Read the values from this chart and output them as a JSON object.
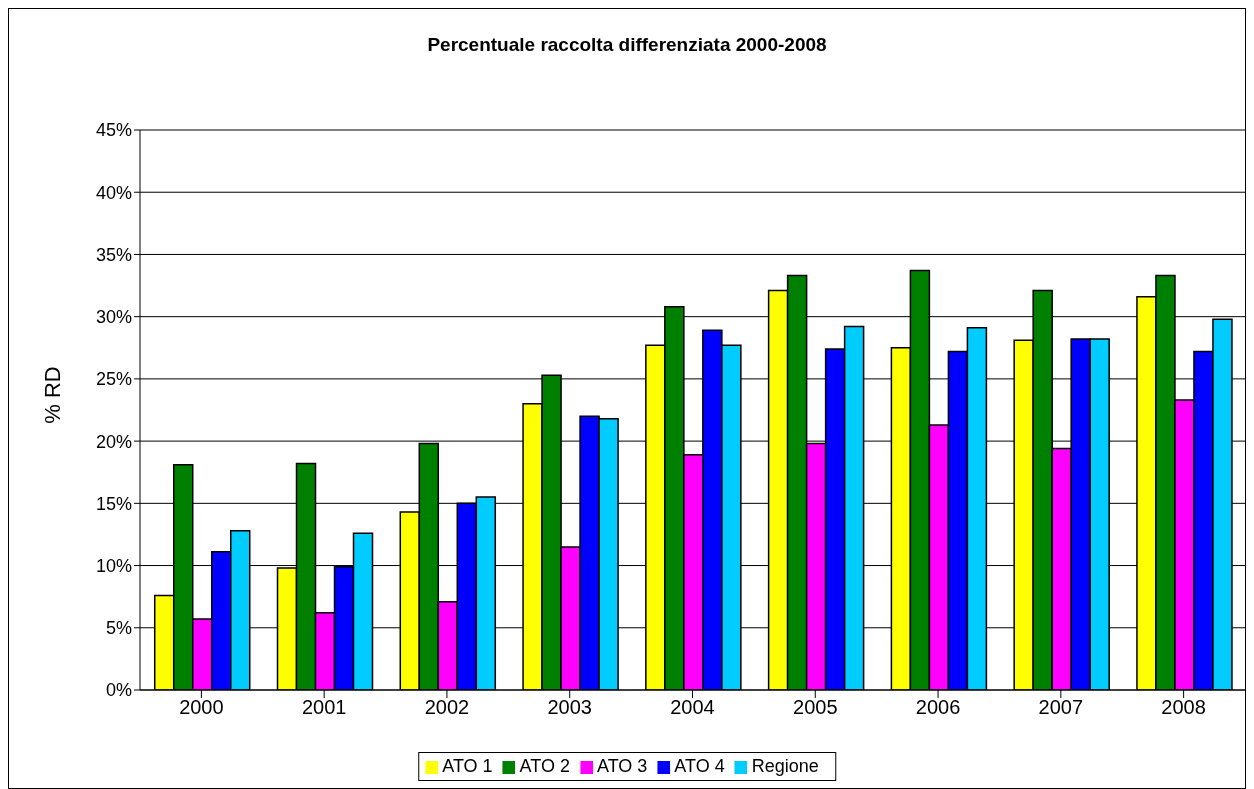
{
  "chart_data": {
    "type": "bar",
    "title": "Percentuale raccolta differenziata 2000-2008",
    "ylabel": "% RD",
    "categories": [
      "2000",
      "2001",
      "2002",
      "2003",
      "2004",
      "2005",
      "2006",
      "2007",
      "2008"
    ],
    "series": [
      {
        "name": "ATO 1",
        "color": "#ffff00",
        "values": [
          7.6,
          9.8,
          14.3,
          23.0,
          27.7,
          32.1,
          27.5,
          28.1,
          31.6
        ]
      },
      {
        "name": "ATO 2",
        "color": "#008000",
        "values": [
          18.1,
          18.2,
          19.8,
          25.3,
          30.8,
          33.3,
          33.7,
          32.1,
          33.3
        ]
      },
      {
        "name": "ATO 3",
        "color": "#ff00ff",
        "values": [
          5.7,
          6.2,
          7.1,
          11.5,
          18.9,
          19.8,
          21.3,
          19.4,
          23.3
        ]
      },
      {
        "name": "ATO 4",
        "color": "#0000ff",
        "values": [
          11.1,
          9.9,
          15.0,
          22.0,
          28.9,
          27.4,
          27.2,
          28.2,
          27.2
        ]
      },
      {
        "name": "Regione",
        "color": "#00ccff",
        "values": [
          12.8,
          12.6,
          15.5,
          21.8,
          27.7,
          29.2,
          29.1,
          28.2,
          29.8
        ]
      }
    ],
    "ylim": [
      0,
      45
    ],
    "yticks": [
      {
        "value": 0,
        "label": "0%"
      },
      {
        "value": 5,
        "label": "5%"
      },
      {
        "value": 10,
        "label": "10%"
      },
      {
        "value": 15,
        "label": "15%"
      },
      {
        "value": 20,
        "label": "20%"
      },
      {
        "value": 25,
        "label": "25%"
      },
      {
        "value": 30,
        "label": "30%"
      },
      {
        "value": 35,
        "label": "35%"
      },
      {
        "value": 40,
        "label": "40%"
      },
      {
        "value": 45,
        "label": "45%"
      }
    ],
    "grid": "y",
    "legend": "bottom"
  }
}
